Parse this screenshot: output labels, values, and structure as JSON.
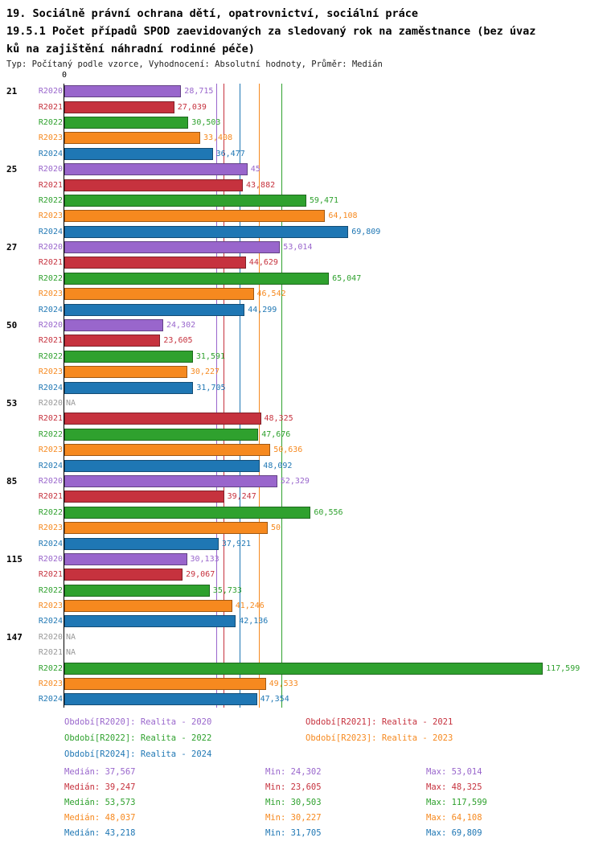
{
  "title": {
    "line1": "19. Sociálně právní ochrana dětí, opatrovnictví, sociální práce",
    "line2": "19.5.1 Počet případů SPOD zaevidovaných za sledovaný rok na zaměstnance (bez úvaz",
    "line3": "ků na zajištění náhradní rodinné péče)",
    "subtitle": "Typ: Počítaný podle vzorce, Vyhodnocení: Absolutní hodnoty, Průměr: Medián"
  },
  "axis": {
    "zero_label": "0"
  },
  "na_label": "NA",
  "chart_data": {
    "type": "bar",
    "orientation": "horizontal",
    "value_format": "decimal-comma",
    "grid": false,
    "legend_position": "bottom",
    "xlim": [
      0,
      131
    ],
    "categories": [
      "21",
      "25",
      "27",
      "50",
      "53",
      "85",
      "115",
      "147"
    ],
    "series": [
      {
        "key": "R2020",
        "color": "#9966CC",
        "legend": "Období[R2020]: Realita - 2020",
        "values": [
          28.715,
          45,
          53.014,
          24.302,
          null,
          52.329,
          30.133,
          null
        ],
        "labels": [
          "28,715",
          "45",
          "53,014",
          "24,302",
          "NA",
          "52,329",
          "30,133",
          "NA"
        ],
        "median": 37.567,
        "stats": {
          "median": "Medián: 37,567",
          "min": "Min: 24,302",
          "max": "Max: 53,014"
        }
      },
      {
        "key": "R2021",
        "color": "#C6323E",
        "legend": "Období[R2021]: Realita - 2021",
        "values": [
          27.039,
          43.882,
          44.629,
          23.605,
          48.325,
          39.247,
          29.067,
          null
        ],
        "labels": [
          "27,039",
          "43,882",
          "44,629",
          "23,605",
          "48,325",
          "39,247",
          "29,067",
          "NA"
        ],
        "median": 39.247,
        "stats": {
          "median": "Medián: 39,247",
          "min": "Min: 23,605",
          "max": "Max: 48,325"
        }
      },
      {
        "key": "R2022",
        "color": "#2FA12E",
        "legend": "Období[R2022]: Realita - 2022",
        "values": [
          30.503,
          59.471,
          65.047,
          31.591,
          47.676,
          60.556,
          35.733,
          117.599
        ],
        "labels": [
          "30,503",
          "59,471",
          "65,047",
          "31,591",
          "47,676",
          "60,556",
          "35,733",
          "117,599"
        ],
        "median": 53.573,
        "stats": {
          "median": "Medián: 53,573",
          "min": "Min: 30,503",
          "max": "Max: 117,599"
        }
      },
      {
        "key": "R2023",
        "color": "#F6891F",
        "legend": "Období[R2023]: Realita - 2023",
        "values": [
          33.408,
          64.108,
          46.542,
          30.227,
          50.636,
          50,
          41.246,
          49.533
        ],
        "labels": [
          "33,408",
          "64,108",
          "46,542",
          "30,227",
          "50,636",
          "50",
          "41,246",
          "49,533"
        ],
        "median": 48.037,
        "stats": {
          "median": "Medián: 48,037",
          "min": "Min: 30,227",
          "max": "Max: 64,108"
        }
      },
      {
        "key": "R2024",
        "color": "#1F77B4",
        "legend": "Období[R2024]: Realita - 2024",
        "values": [
          36.477,
          69.809,
          44.299,
          31.705,
          48.092,
          37.921,
          42.136,
          47.354
        ],
        "labels": [
          "36,477",
          "69,809",
          "44,299",
          "31,705",
          "48,092",
          "37,921",
          "42,136",
          "47,354"
        ],
        "median": 43.218,
        "stats": {
          "median": "Medián: 43,218",
          "min": "Min: 31,705",
          "max": "Max: 69,809"
        }
      }
    ]
  }
}
